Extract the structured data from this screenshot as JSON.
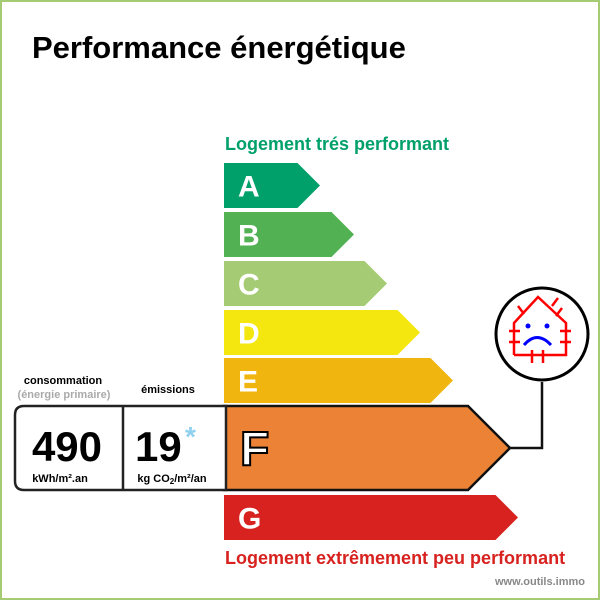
{
  "title": "Performance énergétique",
  "top_label": "Logement trés performant",
  "bottom_label": "Logement extrêmement peu performant",
  "watermark": "www.outils.immo",
  "classes": [
    {
      "letter": "A",
      "color": "#00a06a"
    },
    {
      "letter": "B",
      "color": "#52b153"
    },
    {
      "letter": "C",
      "color": "#a5cc74"
    },
    {
      "letter": "D",
      "color": "#f4e70f"
    },
    {
      "letter": "E",
      "color": "#f0b50f"
    },
    {
      "letter": "F",
      "color": "#eb8235"
    },
    {
      "letter": "G",
      "color": "#d7221f"
    }
  ],
  "current_class": "F",
  "consumption": {
    "label": "consommation",
    "sublabel": "(énergie primaire)",
    "value": "490",
    "unit": "kWh/m².an"
  },
  "emissions": {
    "label": "émissions",
    "value": "19",
    "asterisk": "*",
    "unit_prefix": "kg CO",
    "unit_sub": "2",
    "unit_suffix": "/m²/an"
  },
  "icon": "sad-house-heat-loss-icon",
  "colors": {
    "top_label": "#00a06a",
    "bottom_label": "#d7221f",
    "border": "#a5cc74",
    "asterisk": "#8fd0f0"
  }
}
